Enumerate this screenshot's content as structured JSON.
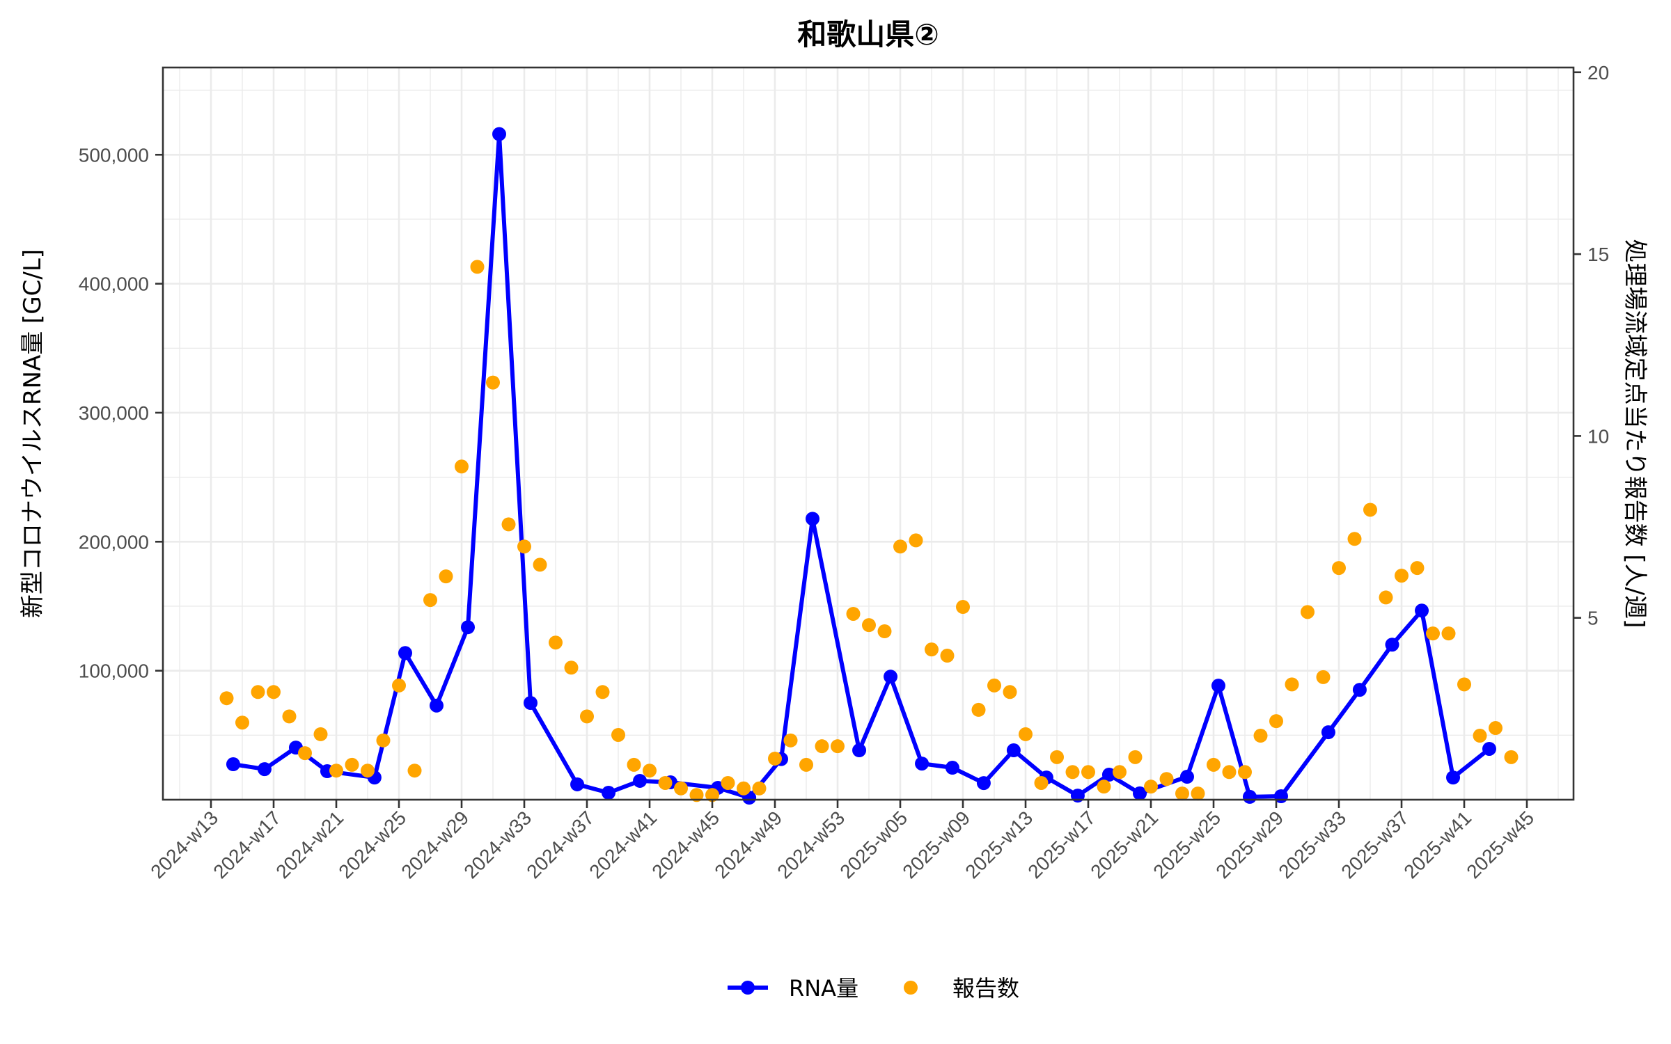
{
  "chart_data": {
    "type": "line+scatter (dual axis)",
    "title": "和歌山県②",
    "xlabel": "",
    "ylabel_left": "新型コロナウイルスRNA量 [GC/L]",
    "ylabel_right": "処理場流域定点当たり報告数 [人/週]",
    "x_tick_labels": [
      "2024-w13",
      "2024-w17",
      "2024-w21",
      "2024-w25",
      "2024-w29",
      "2024-w33",
      "2024-w37",
      "2024-w41",
      "2024-w45",
      "2024-w49",
      "2024-w53",
      "2025-w05",
      "2025-w09",
      "2025-w13",
      "2025-w17",
      "2025-w21",
      "2025-w25",
      "2025-w29",
      "2025-w33",
      "2025-w37",
      "2025-w41",
      "2025-w45"
    ],
    "x_tick_index_step": 4,
    "x_index_range": [
      -3.07,
      87.0
    ],
    "categories_note": "x positions are category indices; index 0 = 2024-w13, index 40 = 2024-w53, index 44 = 2025-w05, index 84 = 2025-w45",
    "ylim_left": [
      0,
      567600
    ],
    "yticks_left": [
      100000,
      200000,
      300000,
      400000,
      500000
    ],
    "ytick_labels_left": [
      "100,000",
      "200,000",
      "300,000",
      "400,000",
      "500,000"
    ],
    "ylim_right": [
      0,
      20.13
    ],
    "yticks_right": [
      5,
      10,
      15,
      20
    ],
    "ytick_labels_right": [
      "5",
      "10",
      "15",
      "20"
    ],
    "grid": true,
    "legend_position": "bottom",
    "series": [
      {
        "name": "RNA量",
        "type": "line",
        "axis": "left",
        "color": "#0000FF",
        "x_index": [
          1.42,
          3.42,
          5.42,
          7.42,
          10.44,
          12.4,
          14.4,
          16.4,
          18.4,
          20.4,
          23.38,
          25.38,
          27.38,
          29.33,
          32.36,
          34.36,
          36.4,
          38.4,
          41.38,
          43.38,
          45.38,
          47.33,
          49.33,
          51.24,
          53.33,
          55.33,
          57.33,
          59.29,
          62.31,
          64.31,
          66.31,
          68.31,
          71.33,
          73.33,
          75.4,
          77.29,
          79.29,
          81.6
        ],
        "values": [
          27500,
          23700,
          40400,
          22100,
          17200,
          113700,
          73000,
          133700,
          516000,
          75000,
          11900,
          5400,
          14600,
          13500,
          9200,
          1600,
          31500,
          217800,
          38300,
          95400,
          28000,
          24800,
          12900,
          38300,
          17200,
          3200,
          19400,
          4900,
          17800,
          88400,
          2200,
          2700,
          52300,
          85200,
          120200,
          146600,
          17200,
          39400
        ]
      },
      {
        "name": "報告数",
        "type": "scatter",
        "axis": "right",
        "color": "#FFA500",
        "x_index": [
          1,
          2,
          3,
          4,
          5,
          6,
          7,
          8,
          9,
          10,
          11,
          12,
          13,
          14,
          15,
          16,
          17,
          18,
          19,
          20,
          21,
          22,
          23,
          24,
          25,
          26,
          27,
          28,
          29,
          30,
          31,
          32,
          33,
          34,
          35,
          36,
          37,
          38,
          39,
          40,
          41,
          42,
          43,
          44,
          45,
          46,
          47,
          48,
          49,
          50,
          51,
          52,
          53,
          54,
          55,
          56,
          57,
          58,
          59,
          60,
          61,
          62,
          63,
          64,
          65,
          66,
          67,
          68,
          69,
          70,
          71,
          72,
          73,
          74,
          75,
          76,
          77,
          78,
          79,
          80,
          81,
          82,
          83
        ],
        "values": [
          2.79,
          2.12,
          2.96,
          2.96,
          2.29,
          1.28,
          1.8,
          0.8,
          0.96,
          0.8,
          1.63,
          3.14,
          0.8,
          5.49,
          6.14,
          9.16,
          14.65,
          11.47,
          7.57,
          6.96,
          6.46,
          4.32,
          3.63,
          2.29,
          2.96,
          1.78,
          0.96,
          0.8,
          0.46,
          0.31,
          0.13,
          0.13,
          0.46,
          0.31,
          0.31,
          1.13,
          1.63,
          0.96,
          1.47,
          1.47,
          5.11,
          4.8,
          4.63,
          6.96,
          7.13,
          4.13,
          3.96,
          5.3,
          2.47,
          3.14,
          2.96,
          1.8,
          0.46,
          1.17,
          0.76,
          0.76,
          0.36,
          0.76,
          1.17,
          0.36,
          0.57,
          0.17,
          0.17,
          0.96,
          0.76,
          0.76,
          1.76,
          2.16,
          3.17,
          5.16,
          3.37,
          6.37,
          7.17,
          7.97,
          5.56,
          6.16,
          6.37,
          4.57,
          4.57,
          3.17,
          1.76,
          1.97,
          1.17
        ]
      }
    ]
  },
  "legend": {
    "items": [
      {
        "label": "RNA量",
        "color": "#0000FF",
        "symbol": "line-with-point"
      },
      {
        "label": "報告数",
        "color": "#FFA500",
        "symbol": "point"
      }
    ]
  },
  "colors": {
    "panel_border": "#333333",
    "grid": "#EBEBEB",
    "tick_text": "#4D4D4D",
    "text": "#000000"
  }
}
